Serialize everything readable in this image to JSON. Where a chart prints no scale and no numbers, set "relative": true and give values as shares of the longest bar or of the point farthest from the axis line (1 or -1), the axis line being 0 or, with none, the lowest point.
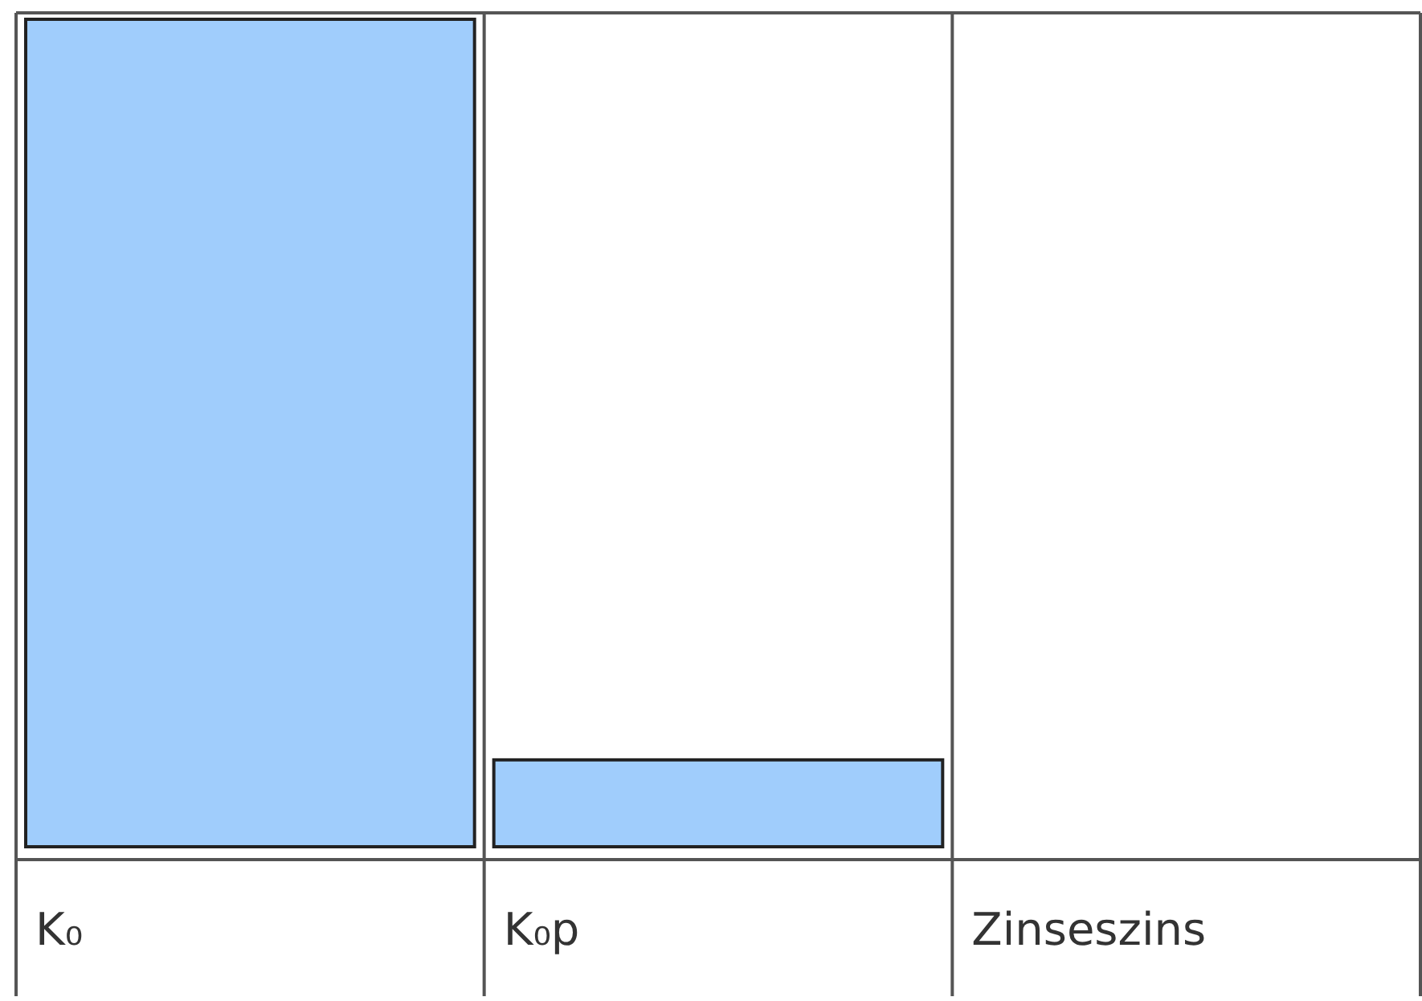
{
  "chart_data": {
    "type": "bar",
    "relative": true,
    "categories": [
      "K₀",
      "K₀p",
      "Zinseszins"
    ],
    "values": [
      1,
      0.105,
      null
    ],
    "color": "#a0cdfc"
  }
}
